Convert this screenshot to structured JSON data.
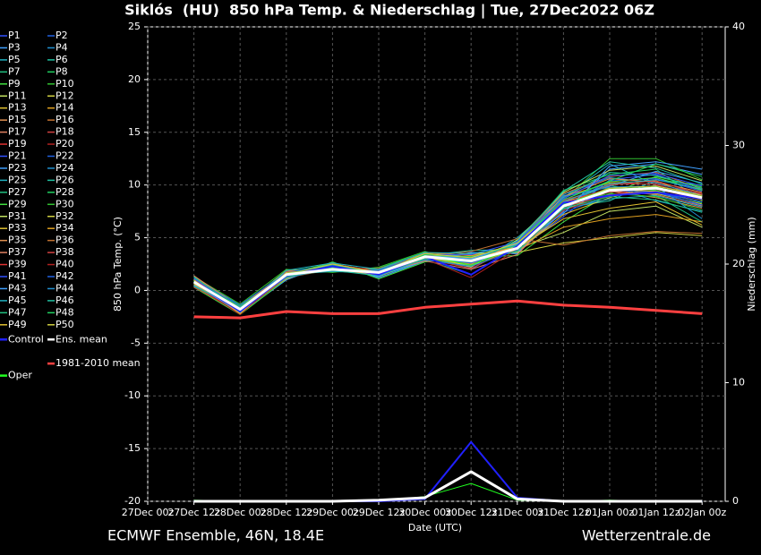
{
  "chart_data": {
    "type": "line",
    "title": "Siklós  (HU)  850 hPa Temp. & Niederschlag | Tue, 27Dec2022 06Z",
    "footer_left": "ECMWF Ensemble, 46N, 18.4E",
    "footer_right": "Wetterzentrale.de",
    "xlabel": "Date (UTC)",
    "ylabel": "850 hPa Temp. (°C)",
    "y2label": "Niederschlag (mm)",
    "categories": [
      "27Dec 00z",
      "27Dec 12z",
      "28Dec 00z",
      "28Dec 12z",
      "29Dec 00z",
      "29Dec 12z",
      "30Dec 00z",
      "30Dec 12z",
      "31Dec 00z",
      "31Dec 12z",
      "01Jan 00z",
      "01Jan 12z",
      "02Jan 00z"
    ],
    "ylim": [
      -20,
      25
    ],
    "yticks": [
      -20,
      -15,
      -10,
      -5,
      0,
      5,
      10,
      15,
      20,
      25
    ],
    "y2lim": [
      0,
      40
    ],
    "y2ticks": [
      0,
      10,
      20,
      30,
      40
    ],
    "grid": true,
    "series": [
      {
        "name": "P1",
        "color": "#3050ff",
        "values": [
          null,
          0.5,
          -2.0,
          1.2,
          2.4,
          1.4,
          3.0,
          2.5,
          3.8,
          7.0,
          10.5,
          11.0,
          9.5
        ]
      },
      {
        "name": "P2",
        "color": "#2060e0",
        "values": [
          null,
          1.0,
          -1.5,
          1.8,
          2.0,
          1.9,
          3.5,
          2.0,
          4.5,
          8.5,
          9.0,
          9.5,
          8.0
        ]
      },
      {
        "name": "P3",
        "color": "#40a0ff",
        "values": [
          null,
          0.7,
          -2.2,
          1.0,
          2.6,
          1.2,
          2.8,
          3.5,
          3.5,
          7.5,
          11.5,
          12.0,
          11.0
        ]
      },
      {
        "name": "P4",
        "color": "#2090d0",
        "values": [
          null,
          1.2,
          -1.4,
          1.7,
          1.8,
          2.0,
          3.4,
          3.0,
          4.2,
          9.0,
          9.8,
          8.5,
          7.5
        ]
      },
      {
        "name": "P5",
        "color": "#20b0c0",
        "values": [
          null,
          0.4,
          -1.9,
          1.4,
          2.3,
          1.5,
          3.1,
          2.2,
          5.0,
          8.8,
          12.0,
          10.0,
          9.0
        ]
      },
      {
        "name": "P6",
        "color": "#20c0a0",
        "values": [
          null,
          0.9,
          -1.7,
          1.6,
          2.1,
          1.8,
          3.3,
          3.8,
          3.9,
          7.8,
          8.5,
          10.5,
          10.0
        ]
      },
      {
        "name": "P7",
        "color": "#20c080",
        "values": [
          null,
          0.6,
          -2.1,
          1.3,
          2.5,
          1.3,
          2.9,
          1.5,
          4.1,
          8.2,
          10.0,
          9.0,
          6.5
        ]
      },
      {
        "name": "P8",
        "color": "#20d060",
        "values": [
          null,
          1.1,
          -1.6,
          1.9,
          1.9,
          2.1,
          3.6,
          2.6,
          4.6,
          9.5,
          11.0,
          11.5,
          8.5
        ]
      },
      {
        "name": "P9",
        "color": "#40e040",
        "values": [
          null,
          0.3,
          -2.3,
          1.1,
          2.7,
          1.1,
          2.7,
          3.2,
          3.3,
          6.5,
          9.2,
          10.8,
          9.8
        ]
      },
      {
        "name": "P10",
        "color": "#30c030",
        "values": [
          null,
          1.3,
          -1.3,
          2.0,
          1.7,
          2.2,
          3.7,
          2.4,
          4.8,
          8.6,
          12.5,
          12.5,
          10.5
        ]
      },
      {
        "name": "P11",
        "color": "#c0e060",
        "values": [
          null,
          0.8,
          -1.8,
          1.5,
          2.2,
          1.6,
          3.2,
          2.9,
          4.0,
          5.5,
          7.5,
          8.0,
          6.0
        ]
      },
      {
        "name": "P12",
        "color": "#d0d040",
        "values": [
          null,
          1.0,
          -1.9,
          1.4,
          2.0,
          1.7,
          3.0,
          2.7,
          4.3,
          8.3,
          9.6,
          9.2,
          8.2
        ]
      },
      {
        "name": "P13",
        "color": "#e0c030",
        "values": [
          null,
          0.5,
          -1.6,
          1.6,
          2.4,
          1.5,
          3.4,
          3.1,
          3.7,
          7.2,
          8.8,
          9.9,
          9.1
        ]
      },
      {
        "name": "P14",
        "color": "#e0a020",
        "values": [
          null,
          1.4,
          -2.0,
          1.3,
          2.1,
          1.9,
          3.1,
          2.3,
          4.4,
          8.9,
          10.2,
          10.4,
          8.7
        ]
      },
      {
        "name": "P15",
        "color": "#e09050",
        "values": [
          null,
          0.6,
          -1.7,
          1.7,
          2.3,
          1.4,
          3.3,
          3.4,
          3.6,
          7.6,
          9.4,
          8.8,
          7.8
        ]
      },
      {
        "name": "P16",
        "color": "#c07030",
        "values": [
          null,
          0.9,
          -2.1,
          1.2,
          2.5,
          1.8,
          2.9,
          2.8,
          4.7,
          9.2,
          10.8,
          11.2,
          9.6
        ]
      },
      {
        "name": "P17",
        "color": "#e08060",
        "values": [
          null,
          0.7,
          -1.5,
          1.8,
          1.9,
          1.6,
          3.5,
          2.6,
          3.9,
          7.9,
          9.1,
          9.4,
          8.4
        ]
      },
      {
        "name": "P18",
        "color": "#d04040",
        "values": [
          null,
          1.1,
          -1.8,
          1.4,
          2.2,
          2.0,
          3.2,
          3.0,
          4.1,
          8.4,
          10.1,
          10.1,
          9.2
        ]
      },
      {
        "name": "P19",
        "color": "#e03030",
        "values": [
          null,
          0.4,
          -2.2,
          1.5,
          2.6,
          1.3,
          3.0,
          2.1,
          4.2,
          8.1,
          9.7,
          9.6,
          8.9
        ]
      },
      {
        "name": "P20",
        "color": "#b02020",
        "values": [
          null,
          1.2,
          -1.6,
          1.6,
          2.0,
          1.7,
          3.6,
          3.3,
          3.8,
          8.7,
          9.3,
          9.7,
          8.6
        ]
      },
      {
        "name": "P21",
        "color": "#3050ff",
        "values": [
          null,
          0.8,
          -1.9,
          1.3,
          2.4,
          1.5,
          3.1,
          2.9,
          4.5,
          8.0,
          10.4,
          10.6,
          9.4
        ]
      },
      {
        "name": "P22",
        "color": "#2060e0",
        "values": [
          null,
          0.6,
          -2.0,
          1.9,
          2.1,
          1.9,
          3.3,
          2.5,
          4.0,
          7.4,
          9.0,
          9.3,
          8.1
        ]
      },
      {
        "name": "P23",
        "color": "#40a0ff",
        "values": [
          null,
          1.0,
          -1.7,
          1.2,
          2.3,
          1.4,
          2.8,
          3.6,
          3.5,
          8.5,
          9.9,
          11.3,
          10.2
        ]
      },
      {
        "name": "P24",
        "color": "#2090d0",
        "values": [
          null,
          0.5,
          -1.4,
          1.7,
          2.5,
          1.8,
          3.4,
          2.7,
          4.6,
          9.1,
          10.7,
          10.2,
          9.0
        ]
      },
      {
        "name": "P25",
        "color": "#20b0c0",
        "values": [
          null,
          1.3,
          -2.1,
          1.5,
          1.8,
          1.6,
          3.2,
          3.1,
          3.9,
          7.7,
          8.7,
          9.0,
          7.9
        ]
      },
      {
        "name": "P26",
        "color": "#20c0a0",
        "values": [
          null,
          0.7,
          -1.8,
          1.4,
          2.2,
          1.7,
          3.0,
          2.4,
          4.3,
          8.8,
          11.2,
          10.9,
          9.7
        ]
      },
      {
        "name": "P27",
        "color": "#20c080",
        "values": [
          null,
          0.9,
          -1.5,
          1.8,
          2.4,
          1.5,
          3.5,
          3.0,
          4.1,
          8.2,
          9.5,
          9.8,
          8.8
        ]
      },
      {
        "name": "P28",
        "color": "#20d060",
        "values": [
          null,
          0.4,
          -2.0,
          1.3,
          2.0,
          2.0,
          3.1,
          2.8,
          3.7,
          7.9,
          9.8,
          9.5,
          8.3
        ]
      },
      {
        "name": "P29",
        "color": "#40e040",
        "values": [
          null,
          1.1,
          -1.9,
          1.6,
          2.6,
          1.4,
          3.3,
          3.2,
          4.4,
          8.6,
          10.3,
          10.7,
          9.5
        ]
      },
      {
        "name": "P30",
        "color": "#30c030",
        "values": [
          null,
          0.6,
          -1.6,
          1.5,
          2.1,
          1.8,
          2.9,
          2.6,
          4.0,
          8.1,
          9.2,
          8.9,
          7.6
        ]
      },
      {
        "name": "P31",
        "color": "#c0e060",
        "values": [
          null,
          1.0,
          -2.2,
          1.7,
          2.3,
          1.6,
          3.4,
          2.2,
          4.8,
          9.3,
          11.4,
          11.8,
          10.4
        ]
      },
      {
        "name": "P32",
        "color": "#d0d040",
        "values": [
          null,
          0.8,
          -1.7,
          1.1,
          2.5,
          1.3,
          3.2,
          3.5,
          3.6,
          4.5,
          5.0,
          5.5,
          5.2
        ]
      },
      {
        "name": "P33",
        "color": "#e0c030",
        "values": [
          null,
          0.5,
          -1.8,
          1.9,
          1.9,
          1.9,
          3.0,
          2.9,
          4.2,
          8.4,
          9.6,
          9.4,
          8.6
        ]
      },
      {
        "name": "P34",
        "color": "#e0a020",
        "values": [
          null,
          1.2,
          -2.0,
          1.4,
          2.2,
          1.7,
          3.6,
          3.3,
          3.8,
          6.0,
          6.8,
          7.2,
          6.5
        ]
      },
      {
        "name": "P35",
        "color": "#e09050",
        "values": [
          null,
          0.7,
          -1.5,
          1.6,
          2.4,
          1.5,
          3.1,
          2.5,
          4.5,
          8.9,
          10.6,
          10.3,
          9.3
        ]
      },
      {
        "name": "P36",
        "color": "#c07030",
        "values": [
          null,
          0.9,
          -2.1,
          1.2,
          2.0,
          2.1,
          3.3,
          3.7,
          4.9,
          4.3,
          5.2,
          5.6,
          5.4
        ]
      },
      {
        "name": "P37",
        "color": "#e08060",
        "values": [
          null,
          1.4,
          -1.6,
          1.5,
          2.3,
          1.6,
          2.8,
          2.0,
          3.4,
          8.0,
          9.4,
          9.1,
          8.0
        ]
      },
      {
        "name": "P38",
        "color": "#d04040",
        "values": [
          null,
          0.3,
          -1.9,
          1.8,
          2.1,
          1.4,
          3.5,
          3.1,
          4.3,
          8.5,
          10.0,
          10.4,
          9.1
        ]
      },
      {
        "name": "P39",
        "color": "#e03030",
        "values": [
          null,
          1.0,
          -1.7,
          1.3,
          2.5,
          1.8,
          3.2,
          2.8,
          4.1,
          8.3,
          9.7,
          9.6,
          8.7
        ]
      },
      {
        "name": "P40",
        "color": "#b02020",
        "values": [
          null,
          0.6,
          -2.3,
          1.6,
          2.2,
          1.5,
          3.0,
          1.2,
          3.9,
          7.6,
          9.0,
          10.0,
          8.9
        ]
      },
      {
        "name": "P41",
        "color": "#3050ff",
        "values": [
          null,
          1.1,
          -1.8,
          1.4,
          2.0,
          1.9,
          3.4,
          3.4,
          4.6,
          8.7,
          10.9,
          11.1,
          9.9
        ]
      },
      {
        "name": "P42",
        "color": "#2060e0",
        "values": [
          null,
          0.8,
          -1.4,
          1.7,
          2.4,
          1.6,
          3.1,
          2.6,
          4.0,
          8.2,
          9.5,
          9.3,
          8.4
        ]
      },
      {
        "name": "P43",
        "color": "#40a0ff",
        "values": [
          null,
          0.5,
          -2.0,
          1.5,
          2.3,
          1.3,
          3.3,
          3.0,
          4.4,
          7.3,
          11.8,
          12.2,
          11.5
        ]
      },
      {
        "name": "P44",
        "color": "#2090d0",
        "values": [
          null,
          1.2,
          -1.6,
          1.2,
          2.1,
          1.7,
          2.9,
          2.3,
          3.8,
          8.9,
          9.8,
          9.9,
          6.8
        ]
      },
      {
        "name": "P45",
        "color": "#20b0c0",
        "values": [
          null,
          0.9,
          -2.1,
          1.9,
          2.6,
          2.0,
          3.6,
          3.5,
          4.2,
          8.4,
          10.1,
          10.5,
          9.6
        ]
      },
      {
        "name": "P46",
        "color": "#20c0a0",
        "values": [
          null,
          0.4,
          -1.7,
          1.4,
          1.9,
          1.4,
          3.0,
          2.7,
          4.7,
          9.4,
          12.2,
          11.6,
          10.1
        ]
      },
      {
        "name": "P47",
        "color": "#20c080",
        "values": [
          null,
          1.3,
          -1.9,
          1.6,
          2.4,
          1.6,
          3.2,
          2.9,
          3.7,
          7.8,
          8.9,
          8.6,
          7.4
        ]
      },
      {
        "name": "P48",
        "color": "#20d060",
        "values": [
          null,
          0.7,
          -1.5,
          1.3,
          2.2,
          1.8,
          3.4,
          3.2,
          4.3,
          8.6,
          10.4,
          12.0,
          10.8
        ]
      },
      {
        "name": "P49",
        "color": "#e0c030",
        "values": [
          null,
          1.0,
          -2.2,
          1.7,
          2.0,
          1.5,
          3.1,
          2.4,
          4.0,
          6.8,
          7.8,
          8.4,
          6.2
        ]
      },
      {
        "name": "P50",
        "color": "#d0d040",
        "values": [
          null,
          0.6,
          -1.8,
          1.5,
          2.5,
          1.7,
          3.5,
          3.1,
          4.5,
          8.1,
          9.7,
          9.9,
          9.0
        ]
      },
      {
        "name": "Control",
        "color": "#2020ff",
        "values": [
          null,
          0.8,
          -2.0,
          1.4,
          2.3,
          1.5,
          3.2,
          1.5,
          4.2,
          8.3,
          9.0,
          9.3,
          8.7
        ],
        "precipitation": [
          null,
          0,
          0,
          0,
          0,
          0,
          0.2,
          5.0,
          0.3,
          0,
          0,
          0,
          0
        ]
      },
      {
        "name": "Ens. mean",
        "color": "#ffffff",
        "values": [
          null,
          0.8,
          -1.8,
          1.5,
          2.0,
          1.7,
          3.2,
          2.8,
          4.0,
          8.0,
          9.5,
          9.7,
          8.8
        ],
        "precipitation": [
          null,
          0,
          0,
          0,
          0,
          0.1,
          0.3,
          2.5,
          0.2,
          0,
          0,
          0,
          0
        ]
      },
      {
        "name": "1981-2010 mean",
        "color": "#ff4040",
        "values": [
          null,
          -2.5,
          -2.6,
          -2.0,
          -2.2,
          -2.2,
          -1.6,
          -1.3,
          -1.0,
          -1.4,
          -1.6,
          -1.9,
          -2.2
        ]
      },
      {
        "name": "Oper",
        "color": "#20ff20",
        "values": [
          null,
          0.9,
          -1.9,
          1.6,
          2.1,
          1.7,
          3.3,
          2.4,
          4.1,
          8.2,
          9.6,
          9.8,
          8.9
        ],
        "precipitation": [
          null,
          0.1,
          0,
          0,
          0,
          0,
          0.4,
          1.5,
          0.1,
          0,
          0.1,
          0,
          0
        ]
      }
    ]
  }
}
